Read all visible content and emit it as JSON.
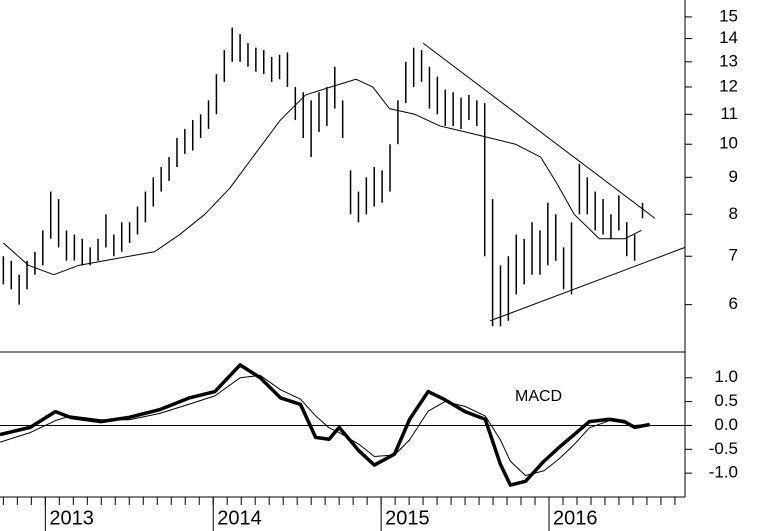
{
  "chart_data": [
    {
      "type": "hilo",
      "log_scale": true,
      "xlim": [
        2012.73,
        2016.81
      ],
      "ylim": [
        5.16,
        15.83
      ],
      "yticks": [
        6,
        7,
        8,
        9,
        10,
        11,
        12,
        13,
        14,
        15
      ],
      "series": [
        {
          "color": "#000000",
          "x": [
            2012.75,
            2012.797,
            2012.844,
            2012.891,
            2012.938,
            2012.985,
            2013.032,
            2013.079,
            2013.126,
            2013.173,
            2013.22,
            2013.267,
            2013.314,
            2013.361,
            2013.408,
            2013.455,
            2013.502,
            2013.549,
            2013.596,
            2013.643,
            2013.69,
            2013.737,
            2013.784,
            2013.831,
            2013.878,
            2013.925,
            2013.972,
            2014.019,
            2014.066,
            2014.113,
            2014.16,
            2014.207,
            2014.254,
            2014.301,
            2014.348,
            2014.395,
            2014.442,
            2014.489,
            2014.536,
            2014.583,
            2014.63,
            2014.677,
            2014.724,
            2014.771,
            2014.818,
            2014.865,
            2014.912,
            2014.959,
            2015.006,
            2015.053,
            2015.1,
            2015.147,
            2015.194,
            2015.241,
            2015.288,
            2015.335,
            2015.382,
            2015.429,
            2015.476,
            2015.523,
            2015.57,
            2015.617,
            2015.664,
            2015.711,
            2015.758,
            2015.805,
            2015.852,
            2015.899,
            2015.946,
            2015.993,
            2016.04,
            2016.087,
            2016.134,
            2016.181,
            2016.228,
            2016.275,
            2016.322,
            2016.369,
            2016.416,
            2016.463,
            2016.51,
            2016.557
          ],
          "high": [
            7.0,
            6.9,
            6.6,
            6.9,
            7.1,
            7.6,
            8.6,
            8.4,
            7.6,
            7.5,
            7.4,
            7.2,
            7.4,
            8.0,
            7.5,
            7.8,
            7.8,
            8.2,
            8.6,
            9.0,
            9.3,
            9.6,
            10.2,
            10.5,
            10.8,
            11.0,
            11.5,
            12.5,
            13.5,
            14.5,
            14.2,
            13.8,
            13.6,
            13.5,
            13.2,
            13.3,
            13.4,
            12.0,
            11.8,
            11.5,
            11.8,
            12.0,
            12.8,
            11.5,
            9.2,
            8.6,
            9.0,
            9.3,
            9.2,
            10.0,
            11.5,
            13.0,
            13.6,
            13.5,
            12.8,
            12.4,
            11.9,
            11.8,
            11.6,
            11.7,
            11.5,
            11.4,
            8.4,
            6.8,
            7.0,
            7.5,
            7.4,
            7.8,
            7.6,
            8.3,
            8.0,
            7.2,
            7.8,
            9.4,
            9.0,
            8.6,
            8.4,
            8.0,
            8.5,
            7.8,
            7.5,
            8.3
          ],
          "low": [
            6.4,
            6.3,
            6.0,
            6.3,
            6.6,
            6.8,
            7.4,
            7.2,
            6.9,
            6.9,
            6.8,
            6.8,
            6.9,
            7.2,
            7.0,
            7.1,
            7.3,
            7.5,
            7.8,
            8.2,
            8.6,
            8.9,
            9.3,
            9.7,
            9.8,
            10.2,
            10.5,
            11.0,
            12.2,
            13.0,
            13.0,
            12.8,
            12.6,
            12.5,
            12.2,
            12.3,
            12.0,
            10.8,
            10.2,
            9.6,
            10.4,
            10.6,
            11.2,
            10.2,
            8.0,
            7.8,
            8.0,
            8.2,
            8.3,
            8.6,
            10.0,
            11.4,
            12.0,
            12.2,
            11.2,
            11.0,
            10.6,
            10.6,
            10.5,
            10.8,
            10.6,
            7.0,
            5.6,
            5.6,
            5.7,
            6.2,
            6.4,
            6.6,
            6.6,
            6.8,
            6.9,
            6.3,
            6.2,
            8.0,
            8.0,
            7.6,
            7.5,
            7.4,
            7.6,
            7.0,
            6.9,
            7.9
          ]
        },
        {
          "color": "#000000",
          "x": [
            2012.75,
            2012.9,
            2013.05,
            2013.2,
            2013.35,
            2013.5,
            2013.65,
            2013.8,
            2013.95,
            2014.1,
            2014.25,
            2014.4,
            2014.55,
            2014.7,
            2014.85,
            2014.95,
            2015.05,
            2015.2,
            2015.35,
            2015.5,
            2015.65,
            2015.8,
            2015.95,
            2016.05,
            2016.15,
            2016.3,
            2016.45,
            2016.55
          ],
          "values": [
            7.3,
            6.8,
            6.6,
            6.8,
            6.9,
            7.0,
            7.1,
            7.5,
            8.0,
            8.7,
            9.7,
            10.8,
            11.7,
            12.0,
            12.3,
            12.0,
            11.2,
            11.0,
            10.6,
            10.4,
            10.2,
            10.0,
            9.6,
            8.8,
            8.0,
            7.4,
            7.4,
            7.6
          ]
        },
        {
          "color": "#000000",
          "x": [
            2015.25,
            2016.63
          ],
          "values": [
            13.8,
            7.9
          ]
        },
        {
          "color": "#000000",
          "x": [
            2015.65,
            2016.81
          ],
          "values": [
            5.7,
            7.2
          ]
        }
      ]
    },
    {
      "type": "line",
      "annotation": "MACD",
      "zero_line": true,
      "xlim": [
        2012.73,
        2016.81
      ],
      "ylim": [
        -1.5,
        1.54
      ],
      "yticks": [
        {
          "value": 1,
          "label": "1.0"
        },
        0.5,
        {
          "value": 0,
          "label": "0.0"
        },
        -0.5,
        {
          "value": -1,
          "label": "-1.0"
        }
      ],
      "xticks": [
        2013,
        2014,
        2015,
        2016
      ],
      "series": [
        {
          "color": "#000000",
          "line_width": 3.5,
          "x": [
            2012.73,
            2012.91,
            2013.06,
            2013.15,
            2013.33,
            2013.5,
            2013.68,
            2013.86,
            2014.01,
            2014.16,
            2014.28,
            2014.4,
            2014.52,
            2014.61,
            2014.69,
            2014.75,
            2014.87,
            2014.96,
            2015.08,
            2015.17,
            2015.28,
            2015.38,
            2015.5,
            2015.62,
            2015.71,
            2015.77,
            2015.86,
            2015.97,
            2016.06,
            2016.15,
            2016.24,
            2016.36,
            2016.45,
            2016.51,
            2016.6
          ],
          "values": [
            -0.19,
            -0.04,
            0.29,
            0.17,
            0.08,
            0.17,
            0.33,
            0.58,
            0.71,
            1.27,
            1.0,
            0.58,
            0.44,
            -0.25,
            -0.29,
            -0.04,
            -0.54,
            -0.83,
            -0.6,
            0.13,
            0.71,
            0.54,
            0.29,
            0.13,
            -0.81,
            -1.25,
            -1.17,
            -0.75,
            -0.46,
            -0.19,
            0.08,
            0.13,
            0.08,
            -0.04,
            0.02
          ]
        },
        {
          "color": "#000000",
          "line_width": 1,
          "x": [
            2012.73,
            2012.91,
            2013.06,
            2013.15,
            2013.33,
            2013.5,
            2013.68,
            2013.86,
            2014.01,
            2014.16,
            2014.28,
            2014.4,
            2014.52,
            2014.61,
            2014.69,
            2014.75,
            2014.87,
            2014.96,
            2015.08,
            2015.17,
            2015.28,
            2015.38,
            2015.5,
            2015.62,
            2015.71,
            2015.77,
            2015.86,
            2015.97,
            2016.06,
            2016.15,
            2016.24,
            2016.36,
            2016.45,
            2016.51,
            2016.6
          ],
          "values": [
            -0.35,
            -0.15,
            0.1,
            0.2,
            0.12,
            0.12,
            0.25,
            0.45,
            0.62,
            1.0,
            1.05,
            0.75,
            0.55,
            0.2,
            -0.05,
            -0.15,
            -0.4,
            -0.65,
            -0.62,
            -0.3,
            0.3,
            0.5,
            0.4,
            0.2,
            -0.3,
            -0.75,
            -1.05,
            -0.95,
            -0.7,
            -0.4,
            -0.05,
            0.1,
            0.05,
            0.0,
            0.02
          ]
        }
      ]
    }
  ]
}
